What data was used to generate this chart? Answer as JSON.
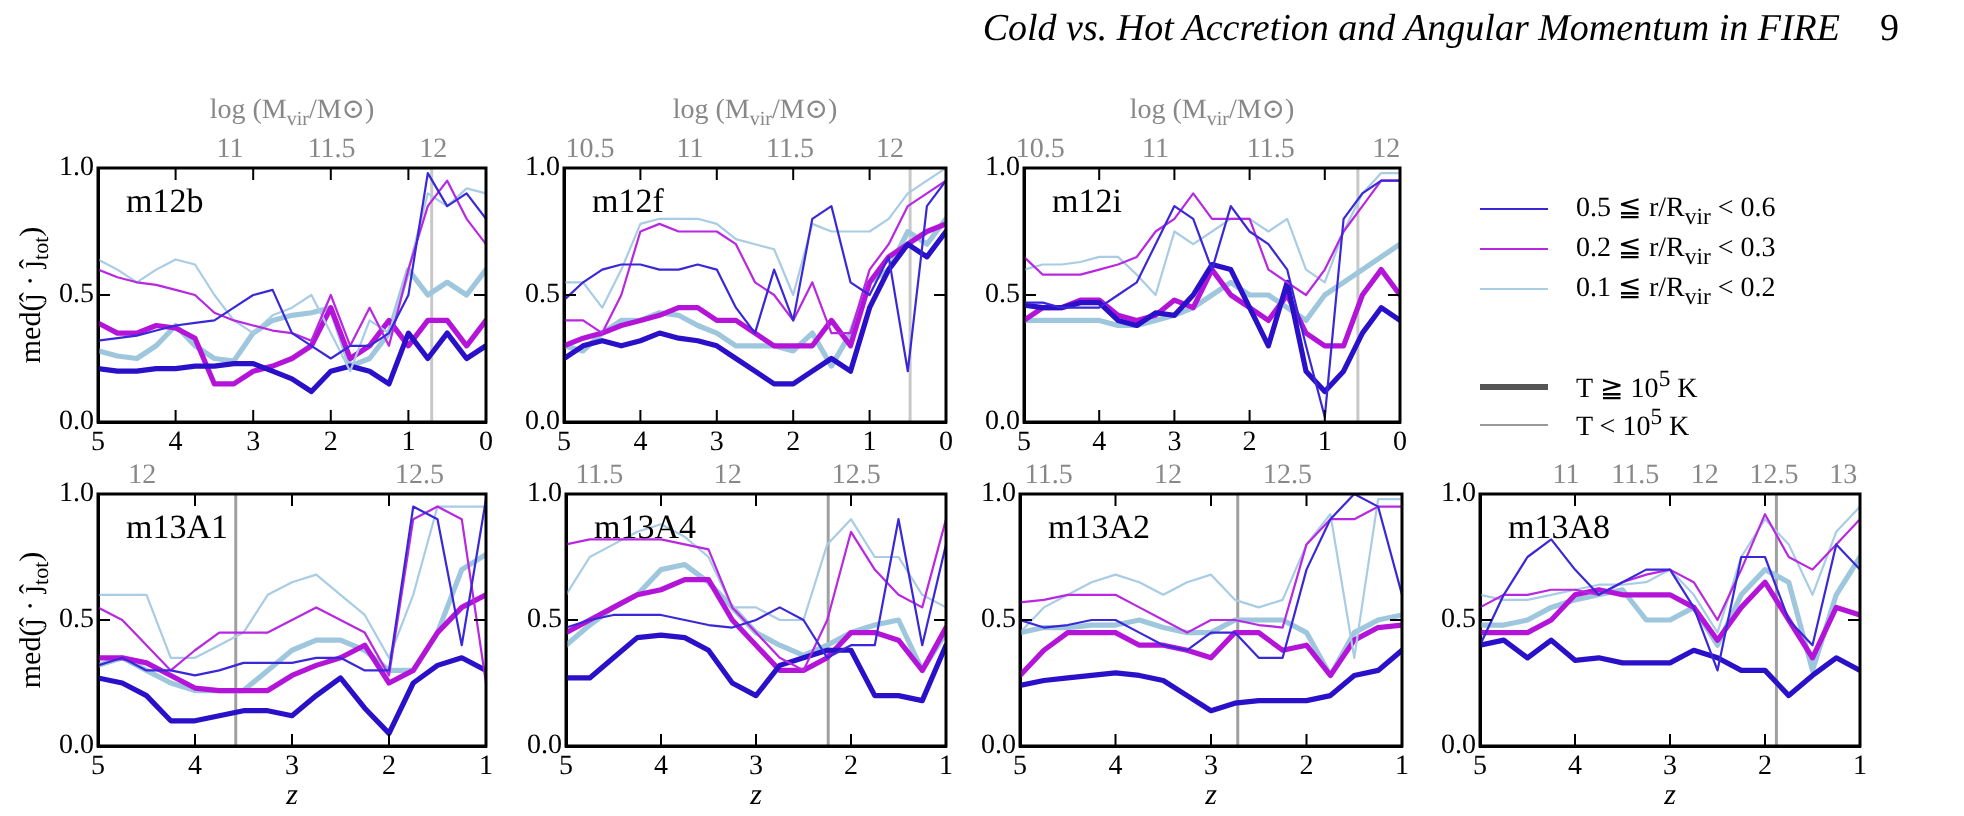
{
  "chart_data": [
    {
      "type": "line",
      "annotations": [
        "m12b"
      ],
      "ylabel": "med(ĵ · ĵ$_{tot}$)",
      "x2label": "log (M$_{vir}$/M⊙)",
      "xlim": [
        5,
        0
      ],
      "ylim": [
        0,
        1
      ],
      "x": [
        5,
        4.75,
        4.5,
        4.25,
        4,
        3.75,
        3.5,
        3.25,
        3,
        2.75,
        2.5,
        2.25,
        2,
        1.75,
        1.5,
        1.25,
        1,
        0.75,
        0.5,
        0.25,
        0
      ],
      "xticks": [
        5,
        4,
        3,
        2,
        1,
        0
      ],
      "yticks": [
        {
          "value": 0,
          "label": "0.0"
        },
        {
          "value": 0.5,
          "label": "0.5"
        },
        {
          "value": 1,
          "label": "1.0"
        }
      ],
      "x2lim": [
        10.35,
        12.26
      ],
      "x2ticks": [
        11,
        11.5,
        12
      ],
      "ref_lines": [
        {
          "axis": "x",
          "value": 0.7,
          "color": "#c8c8c8"
        }
      ],
      "marker": "none",
      "line_style": "solid",
      "series": [
        {
          "color": "#2a10c8",
          "values": [
            0.21,
            0.2,
            0.2,
            0.21,
            0.21,
            0.22,
            0.22,
            0.23,
            0.23,
            0.2,
            0.17,
            0.12,
            0.2,
            0.22,
            0.2,
            0.15,
            0.35,
            0.25,
            0.35,
            0.25,
            0.3
          ]
        },
        {
          "color": "#b414d8",
          "values": [
            0.39,
            0.35,
            0.35,
            0.38,
            0.37,
            0.33,
            0.15,
            0.15,
            0.2,
            0.22,
            0.25,
            0.3,
            0.45,
            0.25,
            0.3,
            0.4,
            0.3,
            0.4,
            0.4,
            0.3,
            0.4
          ]
        },
        {
          "color": "#9ec6dc",
          "values": [
            0.28,
            0.26,
            0.25,
            0.3,
            0.38,
            0.3,
            0.25,
            0.24,
            0.35,
            0.4,
            0.42,
            0.43,
            0.45,
            0.22,
            0.25,
            0.35,
            0.6,
            0.5,
            0.55,
            0.5,
            0.6
          ]
        },
        {
          "color": "#3a28d8",
          "values": [
            0.32,
            0.33,
            0.34,
            0.36,
            0.38,
            0.39,
            0.4,
            0.45,
            0.5,
            0.52,
            0.35,
            0.3,
            0.25,
            0.3,
            0.3,
            0.35,
            0.5,
            0.98,
            0.85,
            0.9,
            0.8
          ]
        },
        {
          "color": "#b828e0",
          "values": [
            0.6,
            0.57,
            0.55,
            0.54,
            0.52,
            0.5,
            0.43,
            0.4,
            0.38,
            0.36,
            0.35,
            0.32,
            0.5,
            0.3,
            0.45,
            0.3,
            0.6,
            0.85,
            0.95,
            0.8,
            0.7
          ]
        },
        {
          "color": "#a8cce4",
          "values": [
            0.64,
            0.6,
            0.55,
            0.6,
            0.64,
            0.62,
            0.5,
            0.4,
            0.35,
            0.42,
            0.45,
            0.5,
            0.35,
            0.2,
            0.4,
            0.35,
            0.6,
            0.9,
            0.85,
            0.92,
            0.9
          ]
        }
      ]
    },
    {
      "type": "line",
      "annotations": [
        "m12f"
      ],
      "x2label": "log (M$_{vir}$/M⊙)",
      "xlim": [
        5,
        0
      ],
      "ylim": [
        0,
        1
      ],
      "x": [
        5,
        4.75,
        4.5,
        4.25,
        4,
        3.75,
        3.5,
        3.25,
        3,
        2.75,
        2.5,
        2.25,
        2,
        1.75,
        1.5,
        1.25,
        1,
        0.75,
        0.5,
        0.25,
        0
      ],
      "xticks": [
        5,
        4,
        3,
        2,
        1,
        0
      ],
      "yticks": [
        {
          "value": 0,
          "label": "0.0"
        },
        {
          "value": 0.5,
          "label": "0.5"
        },
        {
          "value": 1,
          "label": "1.0"
        }
      ],
      "x2lim": [
        10.37,
        12.28
      ],
      "x2ticks": [
        10.5,
        11,
        11.5,
        12
      ],
      "ref_lines": [
        {
          "axis": "x",
          "value": 0.47,
          "color": "#c8c8c8"
        }
      ],
      "marker": "none",
      "line_style": "solid",
      "series": [
        {
          "color": "#2a10c8",
          "values": [
            0.25,
            0.3,
            0.32,
            0.3,
            0.32,
            0.35,
            0.33,
            0.32,
            0.3,
            0.25,
            0.2,
            0.15,
            0.15,
            0.2,
            0.25,
            0.2,
            0.45,
            0.6,
            0.7,
            0.65,
            0.75
          ]
        },
        {
          "color": "#b414d8",
          "values": [
            0.3,
            0.33,
            0.35,
            0.38,
            0.4,
            0.42,
            0.45,
            0.45,
            0.4,
            0.4,
            0.35,
            0.3,
            0.3,
            0.3,
            0.4,
            0.3,
            0.55,
            0.65,
            0.7,
            0.75,
            0.78
          ]
        },
        {
          "color": "#9ec6dc",
          "values": [
            0.3,
            0.28,
            0.35,
            0.4,
            0.4,
            0.43,
            0.42,
            0.38,
            0.35,
            0.3,
            0.3,
            0.3,
            0.28,
            0.35,
            0.22,
            0.35,
            0.55,
            0.6,
            0.75,
            0.7,
            0.8
          ]
        },
        {
          "color": "#3a28d8",
          "values": [
            0.48,
            0.55,
            0.6,
            0.62,
            0.62,
            0.6,
            0.6,
            0.62,
            0.6,
            0.45,
            0.35,
            0.6,
            0.4,
            0.8,
            0.85,
            0.55,
            0.5,
            0.65,
            0.2,
            0.85,
            0.95
          ]
        },
        {
          "color": "#b828e0",
          "values": [
            0.4,
            0.4,
            0.35,
            0.5,
            0.75,
            0.78,
            0.75,
            0.75,
            0.75,
            0.7,
            0.55,
            0.5,
            0.4,
            0.55,
            0.35,
            0.35,
            0.6,
            0.7,
            0.85,
            0.9,
            0.95
          ]
        },
        {
          "color": "#a8cce4",
          "values": [
            0.55,
            0.55,
            0.45,
            0.6,
            0.78,
            0.8,
            0.8,
            0.8,
            0.78,
            0.72,
            0.7,
            0.68,
            0.5,
            0.78,
            0.75,
            0.75,
            0.75,
            0.8,
            0.9,
            0.95,
            1.0
          ]
        }
      ]
    },
    {
      "type": "line",
      "annotations": [
        "m12i"
      ],
      "x2label": "log (M$_{vir}$/M⊙)",
      "xlim": [
        5,
        0
      ],
      "ylim": [
        0,
        1
      ],
      "x": [
        5,
        4.75,
        4.5,
        4.25,
        4,
        3.75,
        3.5,
        3.25,
        3,
        2.75,
        2.5,
        2.25,
        2,
        1.75,
        1.5,
        1.25,
        1,
        0.75,
        0.5,
        0.25,
        0
      ],
      "xticks": [
        5,
        4,
        3,
        2,
        1,
        0
      ],
      "yticks": [
        {
          "value": 0,
          "label": "0.0"
        },
        {
          "value": 0.5,
          "label": "0.5"
        },
        {
          "value": 1,
          "label": "1.0"
        }
      ],
      "x2lim": [
        10.43,
        12.06
      ],
      "x2ticks": [
        10.5,
        11,
        11.5,
        12
      ],
      "ref_lines": [
        {
          "axis": "x",
          "value": 0.56,
          "color": "#c8c8c8"
        }
      ],
      "marker": "none",
      "line_style": "solid",
      "series": [
        {
          "color": "#2a10c8",
          "values": [
            0.46,
            0.45,
            0.45,
            0.47,
            0.47,
            0.4,
            0.38,
            0.43,
            0.42,
            0.5,
            0.62,
            0.6,
            0.45,
            0.3,
            0.55,
            0.2,
            0.12,
            0.2,
            0.35,
            0.45,
            0.4
          ]
        },
        {
          "color": "#b414d8",
          "values": [
            0.4,
            0.45,
            0.45,
            0.48,
            0.48,
            0.42,
            0.4,
            0.42,
            0.48,
            0.45,
            0.6,
            0.5,
            0.45,
            0.4,
            0.5,
            0.35,
            0.3,
            0.3,
            0.5,
            0.6,
            0.5
          ]
        },
        {
          "color": "#9ec6dc",
          "values": [
            0.4,
            0.4,
            0.4,
            0.4,
            0.4,
            0.38,
            0.38,
            0.4,
            0.42,
            0.45,
            0.5,
            0.55,
            0.5,
            0.5,
            0.45,
            0.4,
            0.5,
            0.55,
            0.6,
            0.65,
            0.7
          ]
        },
        {
          "color": "#3a28d8",
          "values": [
            0.47,
            0.47,
            0.45,
            0.45,
            0.45,
            0.5,
            0.55,
            0.7,
            0.85,
            0.8,
            0.6,
            0.85,
            0.75,
            0.7,
            0.6,
            0.3,
            0.02,
            0.8,
            0.9,
            0.95,
            0.95
          ]
        },
        {
          "color": "#b828e0",
          "values": [
            0.65,
            0.58,
            0.58,
            0.58,
            0.6,
            0.62,
            0.65,
            0.75,
            0.8,
            0.9,
            0.8,
            0.8,
            0.8,
            0.6,
            0.55,
            0.5,
            0.6,
            0.75,
            0.85,
            0.95,
            0.95
          ]
        },
        {
          "color": "#a8cce4",
          "values": [
            0.6,
            0.62,
            0.62,
            0.63,
            0.65,
            0.65,
            0.58,
            0.5,
            0.75,
            0.7,
            0.75,
            0.8,
            0.8,
            0.75,
            0.8,
            0.6,
            0.55,
            0.75,
            0.9,
            0.98,
            0.98
          ]
        }
      ]
    },
    {
      "type": "other",
      "title": "Cold vs. Hot Accretion and Angular Momentum in FIRE",
      "subtitle": "9",
      "annotations": [
        "0.5 ≦ r/R$_{vir}$ < 0.6",
        "0.2 ≦ r/R$_{vir}$ < 0.3",
        "0.1 ≦ r/R$_{vir}$ < 0.2",
        "T ≧ 10$^{5}$ K",
        "T < 10$^{5}$ K"
      ],
      "colors": [
        "#3a28d8",
        "#b828e0",
        "#a8cce4",
        "#555555",
        "#999999"
      ]
    },
    {
      "type": "line",
      "annotations": [
        "m13A1"
      ],
      "ylabel": "med(ĵ · ĵ$_{tot}$)",
      "xlabel": "z",
      "xlim": [
        5,
        1
      ],
      "ylim": [
        0,
        1
      ],
      "x": [
        5,
        4.75,
        4.5,
        4.25,
        4,
        3.75,
        3.5,
        3.25,
        3,
        2.75,
        2.5,
        2.25,
        2,
        1.75,
        1.5,
        1.25,
        1
      ],
      "xticks": [
        5,
        4,
        3,
        2,
        1
      ],
      "yticks": [
        {
          "value": 0,
          "label": "0.0"
        },
        {
          "value": 0.5,
          "label": "0.5"
        },
        {
          "value": 1,
          "label": "1.0"
        }
      ],
      "x2lim": [
        11.92,
        12.62
      ],
      "x2ticks": [
        12,
        12.5
      ],
      "ref_lines": [
        {
          "axis": "x",
          "value": 3.58,
          "color": "#a0a0a0"
        }
      ],
      "marker": "none",
      "line_style": "solid",
      "series": [
        {
          "color": "#2a10c8",
          "values": [
            0.27,
            0.25,
            0.2,
            0.1,
            0.1,
            0.12,
            0.14,
            0.14,
            0.12,
            0.2,
            0.27,
            0.15,
            0.05,
            0.25,
            0.32,
            0.35,
            0.3
          ]
        },
        {
          "color": "#b414d8",
          "values": [
            0.35,
            0.35,
            0.33,
            0.28,
            0.23,
            0.22,
            0.22,
            0.22,
            0.28,
            0.32,
            0.35,
            0.4,
            0.25,
            0.3,
            0.45,
            0.55,
            0.6
          ]
        },
        {
          "color": "#9ec6dc",
          "values": [
            0.32,
            0.35,
            0.3,
            0.25,
            0.22,
            0.22,
            0.22,
            0.3,
            0.38,
            0.42,
            0.42,
            0.38,
            0.3,
            0.3,
            0.45,
            0.7,
            0.76
          ]
        },
        {
          "color": "#3a28d8",
          "values": [
            0.32,
            0.35,
            0.3,
            0.3,
            0.28,
            0.3,
            0.33,
            0.33,
            0.33,
            0.35,
            0.35,
            0.3,
            0.3,
            0.95,
            0.9,
            0.4,
            0.98
          ]
        },
        {
          "color": "#b828e0",
          "values": [
            0.55,
            0.5,
            0.4,
            0.3,
            0.38,
            0.45,
            0.45,
            0.45,
            0.5,
            0.55,
            0.5,
            0.45,
            0.28,
            0.9,
            0.95,
            0.9,
            0.25
          ]
        },
        {
          "color": "#a8cce4",
          "values": [
            0.6,
            0.6,
            0.6,
            0.35,
            0.35,
            0.4,
            0.45,
            0.6,
            0.65,
            0.68,
            0.6,
            0.52,
            0.35,
            0.6,
            0.95,
            0.95,
            0.95
          ]
        }
      ]
    },
    {
      "type": "line",
      "annotations": [
        "m13A4"
      ],
      "xlabel": "z",
      "xlim": [
        5,
        1
      ],
      "ylim": [
        0,
        1
      ],
      "x": [
        5,
        4.75,
        4.5,
        4.25,
        4,
        3.75,
        3.5,
        3.25,
        3,
        2.75,
        2.5,
        2.25,
        2,
        1.75,
        1.5,
        1.25,
        1
      ],
      "xticks": [
        5,
        4,
        3,
        2,
        1
      ],
      "yticks": [
        {
          "value": 0,
          "label": "0.0"
        },
        {
          "value": 0.5,
          "label": "0.5"
        },
        {
          "value": 1,
          "label": "1.0"
        }
      ],
      "x2lim": [
        11.37,
        12.85
      ],
      "x2ticks": [
        11.5,
        12,
        12.5
      ],
      "ref_lines": [
        {
          "axis": "x",
          "value": 2.24,
          "color": "#a0a0a0"
        }
      ],
      "marker": "none",
      "line_style": "solid",
      "series": [
        {
          "color": "#2a10c8",
          "values": [
            0.27,
            0.27,
            0.35,
            0.43,
            0.44,
            0.43,
            0.38,
            0.25,
            0.2,
            0.32,
            0.35,
            0.38,
            0.38,
            0.2,
            0.2,
            0.18,
            0.4
          ]
        },
        {
          "color": "#b414d8",
          "values": [
            0.45,
            0.5,
            0.55,
            0.6,
            0.62,
            0.66,
            0.66,
            0.5,
            0.4,
            0.3,
            0.3,
            0.35,
            0.45,
            0.45,
            0.42,
            0.3,
            0.47
          ]
        },
        {
          "color": "#9ec6dc",
          "values": [
            0.4,
            0.48,
            0.55,
            0.6,
            0.7,
            0.72,
            0.65,
            0.55,
            0.45,
            0.4,
            0.36,
            0.4,
            0.45,
            0.48,
            0.5,
            0.3,
            0.45
          ]
        },
        {
          "color": "#3a28d8",
          "values": [
            0.47,
            0.5,
            0.52,
            0.52,
            0.52,
            0.5,
            0.48,
            0.47,
            0.5,
            0.55,
            0.5,
            0.35,
            0.4,
            0.4,
            0.9,
            0.4,
            0.8
          ]
        },
        {
          "color": "#b828e0",
          "values": [
            0.8,
            0.82,
            0.82,
            0.82,
            0.82,
            0.8,
            0.78,
            0.55,
            0.45,
            0.35,
            0.3,
            0.5,
            0.85,
            0.7,
            0.6,
            0.55,
            0.9
          ]
        },
        {
          "color": "#a8cce4",
          "values": [
            0.6,
            0.75,
            0.8,
            0.85,
            0.88,
            0.83,
            0.75,
            0.55,
            0.55,
            0.5,
            0.5,
            0.8,
            0.9,
            0.75,
            0.75,
            0.6,
            0.55
          ]
        }
      ]
    },
    {
      "type": "line",
      "annotations": [
        "m13A2"
      ],
      "xlabel": "z",
      "xlim": [
        5,
        1
      ],
      "ylim": [
        0,
        1
      ],
      "x": [
        5,
        4.75,
        4.5,
        4.25,
        4,
        3.75,
        3.5,
        3.25,
        3,
        2.75,
        2.5,
        2.25,
        2,
        1.75,
        1.5,
        1.25,
        1
      ],
      "xticks": [
        5,
        4,
        3,
        2,
        1
      ],
      "yticks": [
        {
          "value": 0,
          "label": "0.0"
        },
        {
          "value": 0.5,
          "label": "0.5"
        },
        {
          "value": 1,
          "label": "1.0"
        }
      ],
      "x2lim": [
        11.38,
        12.98
      ],
      "x2ticks": [
        11.5,
        12,
        12.5
      ],
      "ref_lines": [
        {
          "axis": "x",
          "value": 2.72,
          "color": "#a0a0a0"
        }
      ],
      "marker": "none",
      "line_style": "solid",
      "series": [
        {
          "color": "#2a10c8",
          "values": [
            0.24,
            0.26,
            0.27,
            0.28,
            0.29,
            0.28,
            0.26,
            0.2,
            0.14,
            0.17,
            0.18,
            0.18,
            0.18,
            0.2,
            0.28,
            0.3,
            0.38
          ]
        },
        {
          "color": "#b414d8",
          "values": [
            0.28,
            0.38,
            0.45,
            0.45,
            0.45,
            0.4,
            0.4,
            0.38,
            0.35,
            0.45,
            0.45,
            0.38,
            0.4,
            0.28,
            0.42,
            0.47,
            0.48
          ]
        },
        {
          "color": "#9ec6dc",
          "values": [
            0.45,
            0.47,
            0.47,
            0.48,
            0.48,
            0.5,
            0.47,
            0.45,
            0.45,
            0.5,
            0.5,
            0.5,
            0.45,
            0.28,
            0.45,
            0.5,
            0.52
          ]
        },
        {
          "color": "#3a28d8",
          "values": [
            0.5,
            0.47,
            0.48,
            0.5,
            0.5,
            0.45,
            0.4,
            0.38,
            0.45,
            0.45,
            0.35,
            0.35,
            0.7,
            0.9,
            1.0,
            0.95,
            0.6
          ]
        },
        {
          "color": "#b828e0",
          "values": [
            0.57,
            0.58,
            0.6,
            0.6,
            0.6,
            0.55,
            0.5,
            0.45,
            0.5,
            0.5,
            0.48,
            0.47,
            0.8,
            0.9,
            0.9,
            0.95,
            0.95
          ]
        },
        {
          "color": "#a8cce4",
          "values": [
            0.45,
            0.55,
            0.6,
            0.65,
            0.68,
            0.65,
            0.6,
            0.65,
            0.68,
            0.58,
            0.55,
            0.58,
            0.8,
            0.92,
            0.35,
            0.98,
            0.98
          ]
        }
      ]
    },
    {
      "type": "line",
      "annotations": [
        "m13A8"
      ],
      "xlabel": "z",
      "xlim": [
        5,
        1
      ],
      "ylim": [
        0,
        1
      ],
      "x": [
        5,
        4.75,
        4.5,
        4.25,
        4,
        3.75,
        3.5,
        3.25,
        3,
        2.75,
        2.5,
        2.25,
        2,
        1.75,
        1.5,
        1.25,
        1
      ],
      "xticks": [
        5,
        4,
        3,
        2,
        1
      ],
      "yticks": [
        {
          "value": 0,
          "label": "0.0"
        },
        {
          "value": 0.5,
          "label": "0.5"
        },
        {
          "value": 1,
          "label": "1.0"
        }
      ],
      "x2lim": [
        10.38,
        13.12
      ],
      "x2ticks": [
        11,
        11.5,
        12,
        12.5,
        13
      ],
      "ref_lines": [
        {
          "axis": "x",
          "value": 1.88,
          "color": "#a0a0a0"
        }
      ],
      "marker": "none",
      "line_style": "solid",
      "series": [
        {
          "color": "#2a10c8",
          "values": [
            0.4,
            0.42,
            0.35,
            0.42,
            0.34,
            0.35,
            0.33,
            0.33,
            0.33,
            0.38,
            0.35,
            0.3,
            0.3,
            0.2,
            0.28,
            0.35,
            0.3
          ]
        },
        {
          "color": "#b414d8",
          "values": [
            0.45,
            0.45,
            0.45,
            0.5,
            0.6,
            0.62,
            0.6,
            0.6,
            0.6,
            0.55,
            0.42,
            0.55,
            0.65,
            0.5,
            0.35,
            0.55,
            0.52
          ]
        },
        {
          "color": "#9ec6dc",
          "values": [
            0.48,
            0.48,
            0.5,
            0.55,
            0.58,
            0.6,
            0.62,
            0.5,
            0.5,
            0.55,
            0.4,
            0.6,
            0.7,
            0.65,
            0.3,
            0.6,
            0.75
          ]
        },
        {
          "color": "#3a28d8",
          "values": [
            0.4,
            0.6,
            0.75,
            0.82,
            0.7,
            0.6,
            0.65,
            0.7,
            0.7,
            0.55,
            0.3,
            0.75,
            0.75,
            0.5,
            0.4,
            0.8,
            0.7
          ]
        },
        {
          "color": "#b828e0",
          "values": [
            0.55,
            0.6,
            0.6,
            0.62,
            0.62,
            0.6,
            0.65,
            0.68,
            0.7,
            0.65,
            0.5,
            0.7,
            0.92,
            0.75,
            0.7,
            0.8,
            0.9
          ]
        },
        {
          "color": "#a8cce4",
          "values": [
            0.6,
            0.58,
            0.58,
            0.6,
            0.62,
            0.64,
            0.64,
            0.65,
            0.7,
            0.6,
            0.45,
            0.75,
            0.9,
            0.8,
            0.6,
            0.85,
            0.95
          ]
        }
      ]
    }
  ]
}
